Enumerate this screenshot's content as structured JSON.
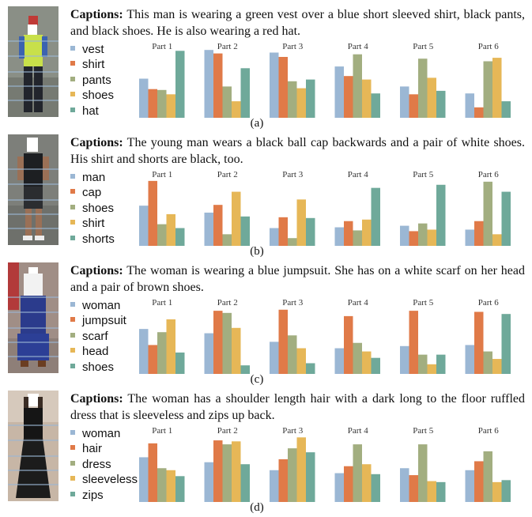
{
  "colors": [
    "#9bb7d4",
    "#e07a48",
    "#a2ae80",
    "#e6b757",
    "#6fa99a"
  ],
  "panels": [
    {
      "caption_label": "Captions:",
      "caption_text": " This man is wearing a green vest over a blue short sleeved shirt, black pants, and black shoes. He is also wearing a red hat.",
      "legend": [
        "vest",
        "shirt",
        "pants",
        "shoes",
        "hat"
      ],
      "sublabel": "(a)"
    },
    {
      "caption_label": "Captions:",
      "caption_text": " The young man wears a black ball cap backwards and a pair of white shoes. His shirt and shorts are black, too.",
      "legend": [
        "man",
        "cap",
        "shoes",
        "shirt",
        "shorts"
      ],
      "sublabel": "(b)"
    },
    {
      "caption_label": "Captions:",
      "caption_text": " The woman is wearing a blue jumpsuit. She has on a white scarf on her head and a pair of brown shoes.",
      "legend": [
        "woman",
        "jumpsuit",
        "scarf",
        "head",
        "shoes"
      ],
      "sublabel": "(c)"
    },
    {
      "caption_label": "Captions:",
      "caption_text": " The woman has a shoulder length hair with a dark long to the floor ruffled dress that is sleeveless and zips up back.",
      "legend": [
        "woman",
        "hair",
        "dress",
        "sleeveless",
        "zips"
      ],
      "sublabel": "(d)"
    }
  ],
  "chart_data": [
    {
      "type": "bar",
      "categories": [
        "Part 1",
        "Part 2",
        "Part 3",
        "Part 4",
        "Part 5",
        "Part 6"
      ],
      "series": [
        {
          "name": "vest",
          "values": [
            0.45,
            0.78,
            0.75,
            0.59,
            0.36,
            0.28
          ]
        },
        {
          "name": "shirt",
          "values": [
            0.33,
            0.74,
            0.7,
            0.48,
            0.27,
            0.12
          ]
        },
        {
          "name": "pants",
          "values": [
            0.32,
            0.36,
            0.42,
            0.73,
            0.68,
            0.65
          ]
        },
        {
          "name": "shoes",
          "values": [
            0.27,
            0.19,
            0.34,
            0.44,
            0.46,
            0.69
          ]
        },
        {
          "name": "hat",
          "values": [
            0.77,
            0.57,
            0.44,
            0.28,
            0.31,
            0.19
          ]
        }
      ],
      "ylim": [
        0,
        0.8
      ]
    },
    {
      "type": "bar",
      "categories": [
        "Part 1",
        "Part 2",
        "Part 3",
        "Part 4",
        "Part 5",
        "Part 6"
      ],
      "series": [
        {
          "name": "man",
          "values": [
            0.52,
            0.43,
            0.23,
            0.24,
            0.26,
            0.21
          ]
        },
        {
          "name": "cap",
          "values": [
            0.84,
            0.53,
            0.37,
            0.32,
            0.19,
            0.32
          ]
        },
        {
          "name": "shoes",
          "values": [
            0.28,
            0.15,
            0.1,
            0.2,
            0.29,
            0.83
          ]
        },
        {
          "name": "shirt",
          "values": [
            0.41,
            0.7,
            0.6,
            0.34,
            0.21,
            0.15
          ]
        },
        {
          "name": "shorts",
          "values": [
            0.23,
            0.38,
            0.36,
            0.75,
            0.79,
            0.7
          ]
        }
      ],
      "ylim": [
        0,
        0.9
      ]
    },
    {
      "type": "bar",
      "categories": [
        "Part 1",
        "Part 2",
        "Part 3",
        "Part 4",
        "Part 5",
        "Part 6"
      ],
      "series": [
        {
          "name": "woman",
          "values": [
            0.42,
            0.38,
            0.3,
            0.24,
            0.26,
            0.27
          ]
        },
        {
          "name": "jumpsuit",
          "values": [
            0.27,
            0.59,
            0.6,
            0.54,
            0.59,
            0.58
          ]
        },
        {
          "name": "scarf",
          "values": [
            0.39,
            0.57,
            0.36,
            0.29,
            0.18,
            0.21
          ]
        },
        {
          "name": "head",
          "values": [
            0.51,
            0.43,
            0.24,
            0.21,
            0.09,
            0.14
          ]
        },
        {
          "name": "shoes",
          "values": [
            0.2,
            0.08,
            0.1,
            0.15,
            0.18,
            0.56
          ]
        }
      ],
      "ylim": [
        0,
        0.65
      ]
    },
    {
      "type": "bar",
      "categories": [
        "Part 1",
        "Part 2",
        "Part 3",
        "Part 4",
        "Part 5",
        "Part 6"
      ],
      "series": [
        {
          "name": "woman",
          "values": [
            0.45,
            0.4,
            0.32,
            0.29,
            0.34,
            0.32
          ]
        },
        {
          "name": "hair",
          "values": [
            0.59,
            0.62,
            0.43,
            0.36,
            0.27,
            0.41
          ]
        },
        {
          "name": "dress",
          "values": [
            0.34,
            0.58,
            0.54,
            0.58,
            0.58,
            0.51
          ]
        },
        {
          "name": "sleeveless",
          "values": [
            0.32,
            0.61,
            0.65,
            0.38,
            0.21,
            0.2
          ]
        },
        {
          "name": "zips",
          "values": [
            0.26,
            0.38,
            0.5,
            0.28,
            0.2,
            0.22
          ]
        }
      ],
      "ylim": [
        0,
        0.7
      ]
    }
  ]
}
